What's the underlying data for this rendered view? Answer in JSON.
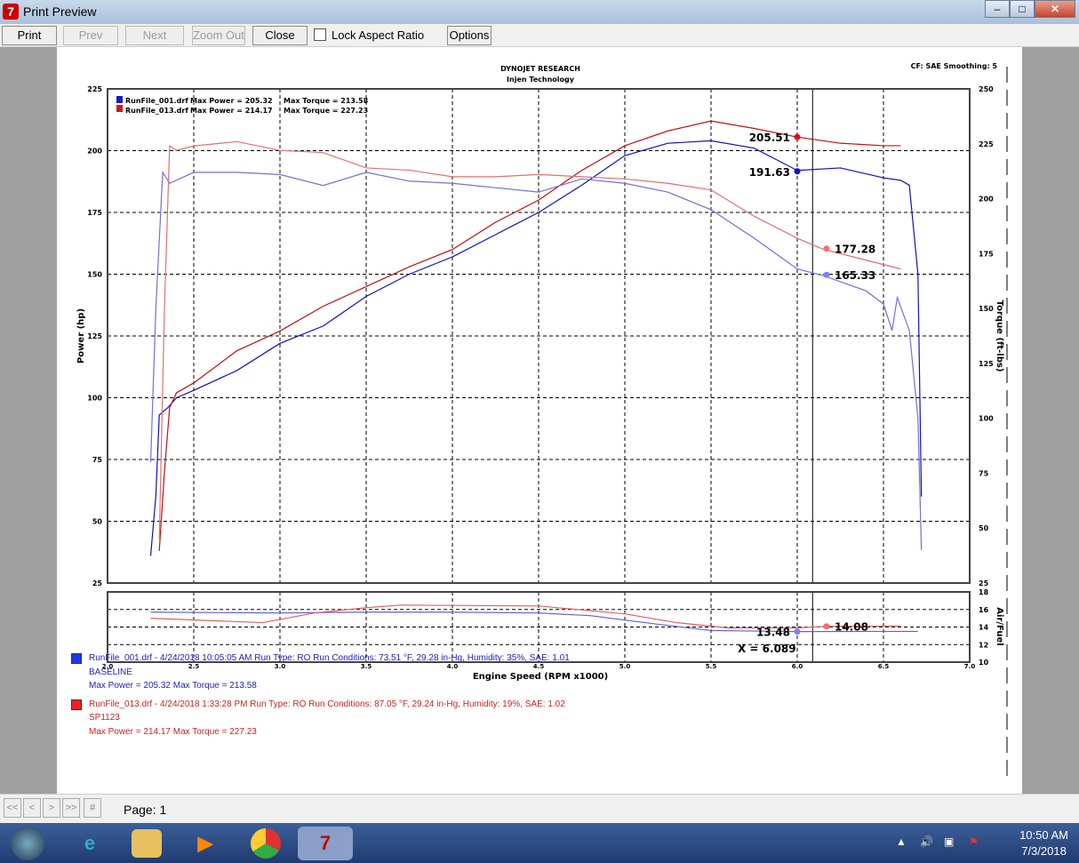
{
  "window": {
    "title": "Print Preview",
    "buttons": {
      "minimize": "–",
      "maximize": "□",
      "close": "✕"
    }
  },
  "toolbar": {
    "print": "Print",
    "prev": "Prev",
    "next": "Next",
    "zoom_out": "Zoom Out",
    "close": "Close",
    "lock_aspect": "Lock Aspect Ratio",
    "lock_aspect_checked": false,
    "options": "Options"
  },
  "report": {
    "title": "DYNOJET RESEARCH",
    "subtitle": "Injen Technology",
    "cf": "CF: SAE  Smoothing: 5",
    "legend": [
      {
        "file": "RunFile_001.drf",
        "power": "Max Power = 205.32",
        "torque": "Max Torque = 213.58",
        "color": "#1a1acc"
      },
      {
        "file": "RunFile_013.drf",
        "power": "Max Power = 214.17",
        "torque": "Max Torque = 227.23",
        "color": "#cc1a1a"
      }
    ],
    "runs": [
      {
        "line1": "RunFile_001.drf - 4/24/2018 10:05:05 AM  Run Type: RO  Run Conditions: 73.51 °F, 29.28 in-Hg,  Humidity:  35%, SAE: 1.01",
        "line2": "BASELINE",
        "line3": "Max Power = 205.32  Max Torque = 213.58",
        "color": "#2222bb"
      },
      {
        "line1": "RunFile_013.drf - 4/24/2018 1:33:28 PM  Run Type: RO  Run Conditions: 87.05 °F, 29.24 in-Hg,  Humidity:  19%, SAE: 1.02",
        "line2": "SP1123",
        "line3": "Max Power = 214.17  Max Torque = 227.23",
        "color": "#cc2222"
      }
    ]
  },
  "chart_data": [
    {
      "type": "line",
      "xlabel": "Engine Speed (RPM x1000)",
      "ylabel": "Power (hp)",
      "y2label": "Torque (ft-lbs)",
      "xlim": [
        2.0,
        7.0
      ],
      "xticks": [
        "2.0",
        "2.5",
        "3.0",
        "3.5",
        "4.0",
        "4.5",
        "5.0",
        "5.5",
        "6.0",
        "6.5",
        "7.0"
      ],
      "ylim": [
        25,
        225
      ],
      "yticks": [
        "25",
        "50",
        "75",
        "100",
        "125",
        "150",
        "175",
        "200",
        "225"
      ],
      "y2lim": [
        25,
        250
      ],
      "y2ticks": [
        "25",
        "50",
        "75",
        "100",
        "125",
        "150",
        "175",
        "200",
        "225",
        "250"
      ],
      "grid": true,
      "cursor_x": 6.089,
      "series": [
        {
          "name": "RunFile_001.drf",
          "kind": "power",
          "axis": "left",
          "color": "#1010c0",
          "x": [
            2.25,
            2.28,
            2.3,
            2.35,
            2.4,
            2.5,
            2.75,
            3.0,
            3.25,
            3.5,
            3.75,
            4.0,
            4.25,
            4.5,
            4.75,
            5.0,
            5.25,
            5.5,
            5.75,
            6.0,
            6.25,
            6.5,
            6.6,
            6.65,
            6.7,
            6.72
          ],
          "y": [
            36,
            60,
            93,
            96,
            100,
            103,
            111,
            122,
            129,
            141,
            150,
            157,
            166,
            175,
            186,
            198,
            203,
            204,
            201,
            192,
            193,
            189,
            188,
            186,
            150,
            60
          ]
        },
        {
          "name": "RunFile_013.drf",
          "kind": "power",
          "axis": "left",
          "color": "#c01010",
          "x": [
            2.3,
            2.33,
            2.36,
            2.4,
            2.5,
            2.75,
            3.0,
            3.25,
            3.5,
            3.75,
            4.0,
            4.25,
            4.5,
            4.75,
            5.0,
            5.25,
            5.5,
            5.75,
            6.0,
            6.25,
            6.5,
            6.6
          ],
          "y": [
            38,
            70,
            96,
            102,
            106,
            119,
            127,
            137,
            145,
            153,
            160,
            171,
            180,
            192,
            202,
            208,
            212,
            209,
            205.5,
            203,
            202,
            202
          ]
        },
        {
          "name": "RunFile_001.drf",
          "kind": "torque",
          "axis": "right",
          "color": "#7070e0",
          "x": [
            2.25,
            2.28,
            2.32,
            2.36,
            2.5,
            2.75,
            3.0,
            3.25,
            3.5,
            3.75,
            4.0,
            4.25,
            4.5,
            4.75,
            5.0,
            5.25,
            5.5,
            5.75,
            6.0,
            6.15,
            6.4,
            6.5,
            6.55,
            6.58,
            6.65,
            6.7,
            6.72
          ],
          "y": [
            80,
            150,
            212,
            207,
            212,
            212,
            211,
            206,
            212,
            208,
            207,
            205,
            203,
            209,
            207,
            203,
            195,
            182,
            168,
            165,
            158,
            152,
            140,
            155,
            140,
            100,
            40
          ]
        },
        {
          "name": "RunFile_013.drf",
          "kind": "torque",
          "axis": "right",
          "color": "#e07070",
          "x": [
            2.3,
            2.33,
            2.36,
            2.4,
            2.5,
            2.75,
            3.0,
            3.25,
            3.5,
            3.75,
            4.0,
            4.25,
            4.5,
            4.75,
            5.0,
            5.25,
            5.5,
            5.75,
            6.0,
            6.15,
            6.4,
            6.6
          ],
          "y": [
            45,
            150,
            224,
            222,
            224,
            226,
            222,
            221,
            214,
            213,
            210,
            210,
            211,
            210,
            209,
            207,
            204,
            192,
            182,
            177,
            172,
            168
          ]
        }
      ],
      "markers": [
        {
          "label": "205.51",
          "x": 6.0,
          "y": 205.51,
          "axis": "left",
          "color": "#e01010"
        },
        {
          "label": "191.63",
          "x": 6.0,
          "y": 191.63,
          "axis": "left",
          "color": "#1010d0"
        },
        {
          "label": "177.28",
          "x": 6.17,
          "y": 177.28,
          "axis": "right",
          "color": "#f07070"
        },
        {
          "label": "165.33",
          "x": 6.17,
          "y": 165.33,
          "axis": "right",
          "color": "#8080f0"
        }
      ]
    },
    {
      "type": "line",
      "ylabel": "Air/Fuel",
      "ylim": [
        10,
        18
      ],
      "yticks": [
        "10",
        "12",
        "14",
        "16",
        "18"
      ],
      "cursor_label": "X = 6.089",
      "series": [
        {
          "name": "RunFile_001.drf",
          "color": "#6060d8",
          "x": [
            2.25,
            3.0,
            3.5,
            4.0,
            4.5,
            4.8,
            5.2,
            5.5,
            6.0,
            6.5,
            6.7
          ],
          "y": [
            15.7,
            15.6,
            15.7,
            15.7,
            15.6,
            15.3,
            14.3,
            13.6,
            13.48,
            13.5,
            13.5
          ]
        },
        {
          "name": "RunFile_013.drf",
          "color": "#e06060",
          "x": [
            2.25,
            2.9,
            3.2,
            3.5,
            3.7,
            4.5,
            5.0,
            5.3,
            5.6,
            6.0,
            6.17,
            6.6
          ],
          "y": [
            15,
            14.5,
            15.6,
            16.2,
            16.5,
            16.4,
            15.5,
            14.5,
            13.9,
            13.9,
            14.08,
            14.1
          ]
        }
      ],
      "markers": [
        {
          "label": "13.48",
          "x": 6.0,
          "y": 13.48,
          "color": "#8080f0"
        },
        {
          "label": "14.08",
          "x": 6.17,
          "y": 14.08,
          "color": "#f07070"
        }
      ]
    }
  ],
  "statusbar": {
    "page": "Page: 1",
    "nav": [
      "<<",
      "<",
      ">",
      ">>",
      "#"
    ]
  },
  "taskbar": {
    "time": "10:50 AM",
    "date": "7/3/2018"
  }
}
